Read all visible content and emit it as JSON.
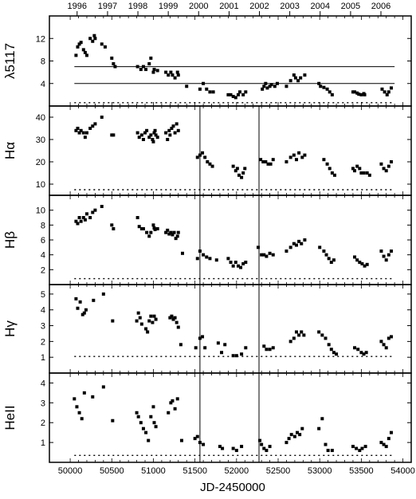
{
  "figure": {
    "xlabel": "JD-2450000",
    "top_axis_label": ""
  },
  "chart_data": [
    {
      "type": "scatter",
      "panel": "l5117",
      "ylabel": "λ5117",
      "xlim": [
        49750,
        54100
      ],
      "ylim": [
        0,
        16
      ],
      "yticks": [
        4,
        8,
        12
      ],
      "reference_lines": [
        7,
        4
      ],
      "baseline": 0.6,
      "x": [
        50070,
        50090,
        50110,
        50130,
        50160,
        50180,
        50200,
        50240,
        50270,
        50290,
        50300,
        50380,
        50420,
        50500,
        50520,
        50540,
        50810,
        50850,
        50880,
        50910,
        50950,
        50970,
        51000,
        51010,
        51050,
        51150,
        51180,
        51210,
        51230,
        51260,
        51290,
        51300,
        51400,
        51560,
        51600,
        51640,
        51680,
        51720,
        51900,
        51930,
        51960,
        51990,
        52020,
        52040,
        52080,
        52110,
        52310,
        52330,
        52350,
        52370,
        52400,
        52420,
        52460,
        52490,
        52600,
        52650,
        52690,
        52710,
        52740,
        52770,
        52820,
        52990,
        53010,
        53050,
        53090,
        53120,
        53150,
        53400,
        53420,
        53450,
        53470,
        53500,
        53530,
        53540,
        53750,
        53780,
        53810,
        53830,
        53860
      ],
      "y": [
        9,
        10.5,
        11,
        11.3,
        10,
        9.5,
        9,
        12,
        11.5,
        12.5,
        12,
        11,
        10.5,
        8.5,
        7.5,
        7,
        7,
        6.5,
        7,
        6.5,
        7.5,
        8.5,
        6,
        6.5,
        6.3,
        6,
        5.5,
        6,
        5.5,
        5,
        6,
        5.5,
        3.5,
        3,
        4,
        3,
        2.5,
        2.5,
        2,
        2,
        1.7,
        1.5,
        2,
        2.5,
        2,
        2.5,
        3,
        3.5,
        4,
        3.2,
        3.5,
        3.8,
        3.5,
        4,
        3.5,
        4.5,
        5.5,
        5,
        4.5,
        5,
        5.5,
        4,
        3.5,
        3.3,
        3,
        2.5,
        2,
        2.5,
        2.5,
        2.3,
        2.1,
        2,
        2.2,
        2,
        3,
        2.5,
        2,
        2.5,
        3.2
      ]
    },
    {
      "type": "scatter",
      "panel": "Ha",
      "ylabel": "Hα",
      "xlim": [
        49750,
        54100
      ],
      "ylim": [
        5,
        45
      ],
      "yticks": [
        10,
        20,
        30,
        40
      ],
      "baseline": 7.5,
      "x": [
        50070,
        50090,
        50110,
        50130,
        50160,
        50180,
        50200,
        50240,
        50270,
        50300,
        50380,
        50500,
        50520,
        50810,
        50830,
        50860,
        50880,
        50900,
        50920,
        50950,
        50970,
        50990,
        51000,
        51010,
        51020,
        51030,
        51050,
        51150,
        51170,
        51190,
        51200,
        51220,
        51240,
        51260,
        51280,
        51300,
        51530,
        51560,
        51590,
        51620,
        51650,
        51680,
        51710,
        51960,
        51990,
        52010,
        52030,
        52060,
        52080,
        52100,
        52290,
        52320,
        52350,
        52380,
        52410,
        52440,
        52600,
        52650,
        52690,
        52720,
        52750,
        52790,
        52820,
        53050,
        53090,
        53120,
        53150,
        53180,
        53400,
        53420,
        53450,
        53480,
        53500,
        53530,
        53570,
        53600,
        53740,
        53770,
        53800,
        53830,
        53860
      ],
      "y": [
        34,
        35,
        33,
        34,
        33,
        31,
        33,
        35,
        36,
        37,
        40,
        32,
        32,
        33,
        31,
        32,
        30,
        33,
        34,
        31,
        32,
        30,
        29,
        33,
        34,
        32,
        31,
        33,
        30,
        34,
        32,
        35,
        36,
        33,
        37,
        34,
        22,
        23,
        24,
        22,
        20,
        19,
        18,
        18,
        16,
        17,
        14,
        13,
        15,
        17,
        21,
        20,
        20,
        19,
        19,
        21,
        20,
        22,
        23,
        21,
        24,
        22,
        23,
        21,
        19,
        17,
        15,
        14,
        17,
        16,
        18,
        17,
        15,
        15,
        15,
        14,
        19,
        17,
        16,
        18,
        20
      ]
    },
    {
      "type": "scatter",
      "panel": "Hb",
      "ylabel": "Hβ",
      "xlim": [
        49750,
        54100
      ],
      "ylim": [
        0,
        12
      ],
      "yticks": [
        2,
        4,
        6,
        8,
        10
      ],
      "baseline": 0.8,
      "x": [
        50070,
        50090,
        50110,
        50130,
        50160,
        50180,
        50200,
        50240,
        50270,
        50300,
        50380,
        50500,
        50520,
        50810,
        50830,
        50860,
        50880,
        50920,
        50950,
        50970,
        51000,
        51010,
        51020,
        51050,
        51150,
        51170,
        51190,
        51210,
        51230,
        51250,
        51270,
        51290,
        51300,
        51350,
        51530,
        51560,
        51600,
        51640,
        51680,
        51760,
        51900,
        51930,
        51960,
        51990,
        52020,
        52050,
        52080,
        52110,
        52260,
        52300,
        52330,
        52360,
        52400,
        52440,
        52600,
        52650,
        52690,
        52720,
        52750,
        52780,
        52820,
        53000,
        53050,
        53080,
        53110,
        53140,
        53170,
        53420,
        53450,
        53480,
        53510,
        53540,
        53570,
        53740,
        53770,
        53800,
        53830,
        53860
      ],
      "y": [
        8.5,
        8.2,
        9,
        8.5,
        9,
        8.7,
        9.5,
        9,
        9.7,
        10,
        10.5,
        8,
        7.5,
        9,
        7.8,
        7.5,
        7.5,
        7,
        6.5,
        7,
        8,
        7.6,
        7.4,
        7.5,
        7,
        7.3,
        6.8,
        7,
        6.7,
        7,
        6.2,
        6.5,
        7,
        4.2,
        3.5,
        4.5,
        4,
        3.7,
        3.5,
        3.3,
        3.5,
        3,
        2.5,
        3,
        2.5,
        2.3,
        2.8,
        3,
        5,
        4,
        4,
        3.8,
        4.2,
        4,
        4.5,
        5,
        5.5,
        5.3,
        5.8,
        5.5,
        6,
        5,
        4.5,
        4,
        3.5,
        3,
        3.3,
        3.7,
        3.3,
        3,
        2.8,
        2.5,
        2.7,
        4.5,
        3.8,
        3.3,
        4,
        4.5
      ]
    },
    {
      "type": "scatter",
      "panel": "Hg",
      "ylabel": "Hγ",
      "xlim": [
        49750,
        54100
      ],
      "ylim": [
        0,
        5.6
      ],
      "yticks": [
        1,
        2,
        3,
        4,
        5
      ],
      "baseline": 1.05,
      "x": [
        50070,
        50090,
        50120,
        50150,
        50170,
        50190,
        50280,
        50400,
        50510,
        50800,
        50820,
        50840,
        50860,
        50910,
        50930,
        50950,
        50970,
        50990,
        51010,
        51030,
        51200,
        51220,
        51240,
        51260,
        51280,
        51300,
        51330,
        51510,
        51560,
        51590,
        51620,
        51780,
        51820,
        51860,
        51960,
        52000,
        52060,
        52110,
        52330,
        52360,
        52400,
        52440,
        52650,
        52690,
        52720,
        52750,
        52780,
        52810,
        52990,
        53030,
        53070,
        53110,
        53140,
        53170,
        53200,
        53420,
        53460,
        53500,
        53530,
        53560,
        53740,
        53770,
        53800,
        53830,
        53860
      ],
      "y": [
        4.7,
        4.1,
        4.5,
        3.7,
        3.8,
        4,
        4.6,
        5,
        3.3,
        3.3,
        3.8,
        3.5,
        3.1,
        2.8,
        2.6,
        3.3,
        3.6,
        3.2,
        3.6,
        3.4,
        3.5,
        3.6,
        3.4,
        3.5,
        3.2,
        2.9,
        1.8,
        1.6,
        2.2,
        2.3,
        1.6,
        1.9,
        1.3,
        1.8,
        1.1,
        1.1,
        1.2,
        1.6,
        1.7,
        1.5,
        1.5,
        1.6,
        2,
        2.2,
        2.6,
        2.4,
        2.6,
        2.4,
        2.6,
        2.4,
        2.2,
        1.8,
        1.5,
        1.3,
        1.2,
        1.6,
        1.5,
        1.3,
        1.2,
        1.3,
        2,
        1.8,
        1.6,
        2.2,
        2.3
      ]
    },
    {
      "type": "scatter",
      "panel": "HeII",
      "ylabel": "HeII",
      "xlim": [
        49750,
        54100
      ],
      "ylim": [
        0,
        4.5
      ],
      "yticks": [
        1,
        2,
        3,
        4
      ],
      "baseline": 0.35,
      "x": [
        50050,
        50080,
        50110,
        50140,
        50170,
        50270,
        50400,
        50510,
        50800,
        50820,
        50850,
        50880,
        50910,
        50940,
        50970,
        51000,
        51010,
        51030,
        51180,
        51210,
        51230,
        51260,
        51290,
        51340,
        51500,
        51530,
        51560,
        51600,
        51800,
        51830,
        51960,
        52000,
        52060,
        52280,
        52300,
        52330,
        52360,
        52400,
        52600,
        52630,
        52660,
        52700,
        52730,
        52760,
        52790,
        52990,
        53030,
        53070,
        53100,
        53150,
        53400,
        53440,
        53480,
        53510,
        53550,
        53740,
        53770,
        53800,
        53830,
        53860
      ],
      "y": [
        3.2,
        2.8,
        2.5,
        2.2,
        3.5,
        3.3,
        3.8,
        2.1,
        2.5,
        2.3,
        2,
        1.7,
        1.5,
        1.1,
        2.3,
        2.8,
        2,
        1.8,
        2.5,
        3,
        3.1,
        2.7,
        3.2,
        1.1,
        1.2,
        1.3,
        1,
        0.9,
        0.8,
        0.7,
        0.7,
        0.6,
        0.8,
        1.1,
        0.9,
        0.7,
        0.6,
        0.8,
        1,
        1.2,
        1.4,
        1.3,
        1.5,
        1.4,
        1.7,
        1.7,
        2.2,
        0.9,
        0.6,
        0.6,
        0.8,
        0.7,
        0.6,
        0.7,
        0.8,
        1,
        0.9,
        0.8,
        1.2,
        1.5
      ]
    }
  ],
  "top_axis": {
    "labels": [
      "1996",
      "1997",
      "1998",
      "1999",
      "2000",
      "2001",
      "2002",
      "2003",
      "2004",
      "2005",
      "2006"
    ],
    "jd": [
      50083,
      50449,
      50814,
      51179,
      51544,
      51910,
      52275,
      52640,
      53005,
      53371,
      53736
    ]
  },
  "bottom_axis": {
    "labels": [
      "50000",
      "50500",
      "51000",
      "51500",
      "52000",
      "52500",
      "53000",
      "53500",
      "54000"
    ],
    "values": [
      50000,
      50500,
      51000,
      51500,
      52000,
      52500,
      53000,
      53500,
      54000
    ],
    "minor_step": 100
  },
  "vertical_markers": [
    51560,
    52270
  ],
  "colors": {
    "ink": "#000000",
    "background": "#ffffff"
  }
}
